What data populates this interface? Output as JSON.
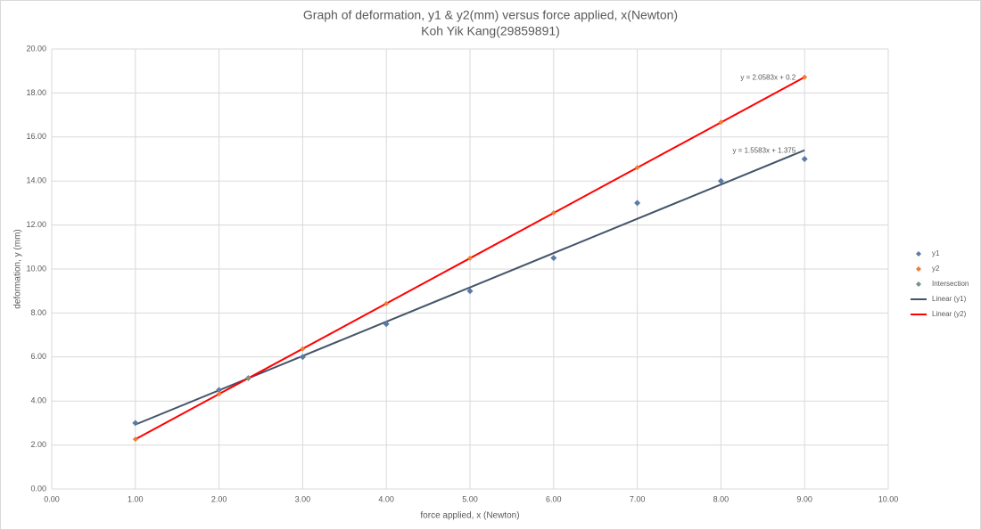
{
  "chart_data": {
    "type": "scatter",
    "title": "Graph of deformation, y1 & y2(mm) versus force applied, x(Newton)",
    "subtitle": "Koh Yik Kang(29859891)",
    "x_label": "force applied, x (Newton)",
    "y_label": "deformation, y (mm)",
    "xlim": [
      0,
      10
    ],
    "ylim": [
      0,
      20
    ],
    "xticks": [
      {
        "value": 0,
        "label": "0.00"
      },
      {
        "value": 1,
        "label": "1.00"
      },
      {
        "value": 2,
        "label": "2.00"
      },
      {
        "value": 3,
        "label": "3.00"
      },
      {
        "value": 4,
        "label": "4.00"
      },
      {
        "value": 5,
        "label": "5.00"
      },
      {
        "value": 6,
        "label": "6.00"
      },
      {
        "value": 7,
        "label": "7.00"
      },
      {
        "value": 8,
        "label": "8.00"
      },
      {
        "value": 9,
        "label": "9.00"
      },
      {
        "value": 10,
        "label": "10.00"
      }
    ],
    "yticks": [
      {
        "value": 0,
        "label": "0.00"
      },
      {
        "value": 2,
        "label": "2.00"
      },
      {
        "value": 4,
        "label": "4.00"
      },
      {
        "value": 6,
        "label": "6.00"
      },
      {
        "value": 8,
        "label": "8.00"
      },
      {
        "value": 10,
        "label": "10.00"
      },
      {
        "value": 12,
        "label": "12.00"
      },
      {
        "value": 14,
        "label": "14.00"
      },
      {
        "value": 16,
        "label": "16.00"
      },
      {
        "value": 18,
        "label": "18.00"
      },
      {
        "value": 20,
        "label": "20.00"
      }
    ],
    "grid": true,
    "legend": "right",
    "series": [
      {
        "name": "y1",
        "mode": "markers",
        "color": "#5b7ba6",
        "x": [
          1,
          2,
          3,
          4,
          5,
          6,
          7,
          8,
          9
        ],
        "values": [
          3,
          4.5,
          6,
          7.5,
          9,
          10.5,
          13,
          14,
          15
        ]
      },
      {
        "name": "y2",
        "mode": "markers",
        "color": "#ed7d31",
        "x": [
          1,
          2,
          3,
          4,
          5,
          6,
          7,
          8,
          9
        ],
        "values": [
          2.26,
          4.32,
          6.37,
          8.43,
          10.49,
          12.55,
          14.61,
          16.67,
          18.72
        ]
      },
      {
        "name": "Intersection",
        "mode": "markers",
        "color": "#7f8f88",
        "x": [
          2.35
        ],
        "values": [
          5.04
        ]
      },
      {
        "name": "Linear (y1)",
        "mode": "line",
        "color": "#44546a",
        "x": [
          1,
          9
        ],
        "values": [
          2.93,
          15.4
        ]
      },
      {
        "name": "Linear (y2)",
        "mode": "line",
        "color": "#ff0000",
        "x": [
          1,
          9
        ],
        "values": [
          2.26,
          18.72
        ]
      }
    ],
    "annotations": [
      {
        "text": "y = 2.0583x + 0.2",
        "x": 9,
        "y": 18.72
      },
      {
        "text": "y = 1.5583x + 1.375",
        "x": 9,
        "y": 15.4
      }
    ]
  }
}
